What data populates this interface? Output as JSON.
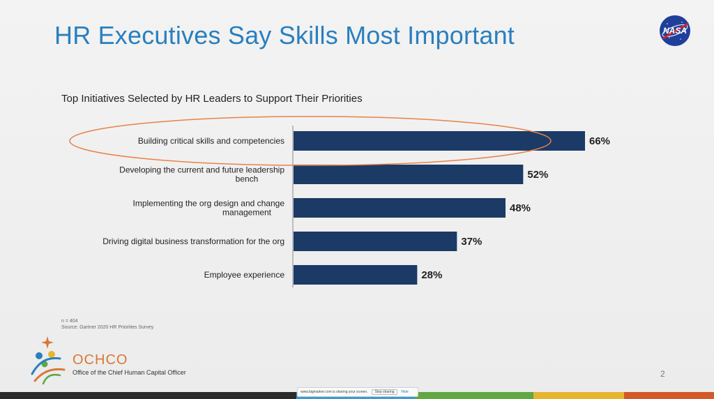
{
  "slide": {
    "title": "HR Executives Say Skills Most Important",
    "page_number": "2",
    "footnote_n": "n = 404",
    "footnote_source": "Source: Gartner 2020 HR Priorities Survey"
  },
  "org": {
    "name": "OCHCO",
    "subtitle": "Office of the Chief Human Capital Officer",
    "color": "#d9773a"
  },
  "share_bar": {
    "message": "www.bigmarker.com is sharing your screen.",
    "stop_label": "Stop sharing",
    "hide_label": "Hide"
  },
  "colors": {
    "title": "#2a7fbf",
    "bar": "#1b3a66",
    "highlight": "#e8814a",
    "band": [
      "#2b2b2b",
      "#2b2b2b",
      "#3a9bd5",
      "#5fa845",
      "#e6b530",
      "#d25a28"
    ]
  },
  "chart_data": {
    "type": "bar",
    "orientation": "horizontal",
    "title": "Top Initiatives Selected by HR Leaders to Support Their Priorities",
    "xlabel": "",
    "ylabel": "",
    "xlim": [
      0,
      70
    ],
    "grid": false,
    "categories": [
      [
        "Building  critical skills and competencies"
      ],
      [
        "Developing the current and future leadership",
        "bench"
      ],
      [
        "Implementing the org design and change",
        "management"
      ],
      [
        "Driving digital business transformation for the org"
      ],
      [
        "Employee experience"
      ]
    ],
    "values": [
      66,
      52,
      48,
      37,
      28
    ],
    "value_labels": [
      "66%",
      "52%",
      "48%",
      "37%",
      "28%"
    ],
    "highlighted_index": 0
  }
}
